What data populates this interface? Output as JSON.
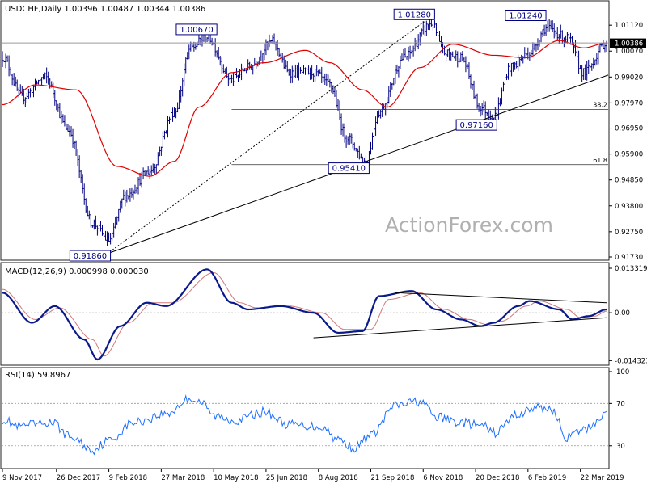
{
  "chart_data": {
    "type": "line",
    "symbol": "USDCHF",
    "timeframe": "Daily",
    "ohlc": "1.00396 1.00487 1.00344 1.00386",
    "watermark": "ActionForex.com",
    "x_labels": [
      "9 Nov 2017",
      "26 Dec 2017",
      "9 Feb 2018",
      "27 Mar 2018",
      "10 May 2018",
      "25 Jun 2018",
      "8 Aug 2018",
      "21 Sep 2018",
      "6 Nov 2018",
      "20 Dec 2018",
      "6 Feb 2019",
      "22 Mar 2019"
    ],
    "x_label_index": [
      0,
      33,
      65,
      97,
      129,
      161,
      193,
      225,
      257,
      289,
      321,
      353
    ],
    "n_bars": 370,
    "price": {
      "ylim": [
        0.9173,
        1.0142
      ],
      "ticks": [
        "1.01120",
        "1.00070",
        "0.99020",
        "0.97970",
        "0.96950",
        "0.95900",
        "0.94850",
        "0.93800",
        "0.92750",
        "0.91730"
      ],
      "last": "1.00386",
      "close_anchors": [
        [
          0,
          0.9983
        ],
        [
          12,
          0.982
        ],
        [
          26,
          0.9902
        ],
        [
          40,
          0.969
        ],
        [
          55,
          0.931
        ],
        [
          65,
          0.924
        ],
        [
          75,
          0.942
        ],
        [
          90,
          0.952
        ],
        [
          105,
          0.976
        ],
        [
          115,
          1.002
        ],
        [
          125,
          1.0067
        ],
        [
          140,
          0.989
        ],
        [
          150,
          0.994
        ],
        [
          165,
          1.0045
        ],
        [
          175,
          0.992
        ],
        [
          190,
          0.992
        ],
        [
          200,
          0.987
        ],
        [
          210,
          0.966
        ],
        [
          222,
          0.956
        ],
        [
          230,
          0.976
        ],
        [
          245,
          0.998
        ],
        [
          262,
          1.0118
        ],
        [
          270,
          1.0
        ],
        [
          280,
          0.998
        ],
        [
          292,
          0.978
        ],
        [
          300,
          0.974
        ],
        [
          310,
          0.994
        ],
        [
          322,
          1.0
        ],
        [
          332,
          1.01
        ],
        [
          345,
          1.006
        ],
        [
          355,
          0.992
        ],
        [
          369,
          1.0039
        ]
      ],
      "ma_anchors": [
        [
          0,
          0.979
        ],
        [
          20,
          0.987
        ],
        [
          45,
          0.985
        ],
        [
          70,
          0.954
        ],
        [
          90,
          0.95
        ],
        [
          105,
          0.956
        ],
        [
          120,
          0.978
        ],
        [
          140,
          0.992
        ],
        [
          160,
          0.996
        ],
        [
          185,
          1.001
        ],
        [
          200,
          0.996
        ],
        [
          220,
          0.985
        ],
        [
          235,
          0.978
        ],
        [
          255,
          0.994
        ],
        [
          275,
          1.0035
        ],
        [
          300,
          0.999
        ],
        [
          320,
          0.998
        ],
        [
          340,
          1.005
        ],
        [
          355,
          1.002
        ],
        [
          369,
          1.004
        ]
      ],
      "hline": 1.004,
      "fib_levels": [
        {
          "label": "38.2",
          "value": 0.977
        },
        {
          "label": "61.8",
          "value": 0.9547
        }
      ],
      "annotations": [
        {
          "text": "0.91860",
          "i": 64,
          "value": 0.9186
        },
        {
          "text": "1.00670",
          "i": 129,
          "value": 1.0067
        },
        {
          "text": "0.95410",
          "i": 222,
          "value": 0.9541
        },
        {
          "text": "1.01280",
          "i": 262,
          "value": 1.0128
        },
        {
          "text": "0.97160",
          "i": 300,
          "value": 0.9716
        },
        {
          "text": "1.01240",
          "i": 330,
          "value": 1.0124
        }
      ],
      "lines": [
        {
          "style": "solid",
          "from": [
            64,
            0.9186
          ],
          "to": [
            370,
            0.991
          ]
        },
        {
          "style": "dashed",
          "from": [
            64,
            0.9186
          ],
          "to": [
            258,
            1.0128
          ]
        }
      ]
    },
    "macd": {
      "label": "MACD(12,26,9) 0.000998 0.000030",
      "ylim": [
        -0.0152,
        0.0138
      ],
      "ticks": [
        "0.013319",
        "0.00",
        "-0.014323"
      ],
      "anchors": [
        [
          0,
          0.006
        ],
        [
          18,
          -0.003
        ],
        [
          32,
          0.002
        ],
        [
          50,
          -0.008
        ],
        [
          58,
          -0.014
        ],
        [
          72,
          -0.004
        ],
        [
          88,
          0.003
        ],
        [
          100,
          0.002
        ],
        [
          125,
          0.013
        ],
        [
          140,
          0.003
        ],
        [
          150,
          0.001
        ],
        [
          170,
          0.002
        ],
        [
          190,
          0.0
        ],
        [
          205,
          -0.006
        ],
        [
          220,
          -0.0055
        ],
        [
          230,
          0.005
        ],
        [
          250,
          0.0065
        ],
        [
          265,
          0.001
        ],
        [
          280,
          -0.002
        ],
        [
          292,
          -0.004
        ],
        [
          300,
          -0.003
        ],
        [
          315,
          0.002
        ],
        [
          322,
          0.0035
        ],
        [
          340,
          0.001
        ],
        [
          348,
          -0.002
        ],
        [
          358,
          -0.001
        ],
        [
          369,
          0.001
        ]
      ],
      "signal_anchors": [
        [
          0,
          0.007
        ],
        [
          20,
          -0.002
        ],
        [
          35,
          0.0015
        ],
        [
          55,
          -0.008
        ],
        [
          62,
          -0.013
        ],
        [
          77,
          -0.003
        ],
        [
          92,
          0.003
        ],
        [
          104,
          0.003
        ],
        [
          129,
          0.012
        ],
        [
          145,
          0.003
        ],
        [
          155,
          0.0015
        ],
        [
          175,
          0.002
        ],
        [
          195,
          0.0
        ],
        [
          209,
          -0.005
        ],
        [
          225,
          -0.005
        ],
        [
          236,
          0.004
        ],
        [
          255,
          0.006
        ],
        [
          270,
          0.001
        ],
        [
          285,
          -0.002
        ],
        [
          296,
          -0.0035
        ],
        [
          305,
          -0.0025
        ],
        [
          320,
          0.002
        ],
        [
          328,
          0.0035
        ],
        [
          345,
          0.001
        ],
        [
          353,
          -0.0015
        ],
        [
          362,
          -0.001
        ],
        [
          369,
          0.0005
        ]
      ],
      "lines": [
        {
          "from": [
            240,
            0.006
          ],
          "to": [
            369,
            0.003
          ]
        },
        {
          "from": [
            190,
            -0.0075
          ],
          "to": [
            369,
            -0.0015
          ]
        }
      ]
    },
    "rsi": {
      "label": "RSI(14) 59.8967",
      "ylim": [
        10,
        100
      ],
      "ticks": [
        "100",
        "70",
        "30"
      ],
      "levels": [
        70,
        30
      ],
      "anchors": [
        [
          0,
          55
        ],
        [
          10,
          48
        ],
        [
          20,
          50
        ],
        [
          30,
          52
        ],
        [
          42,
          38
        ],
        [
          55,
          26
        ],
        [
          65,
          35
        ],
        [
          80,
          52
        ],
        [
          100,
          60
        ],
        [
          115,
          75
        ],
        [
          120,
          72
        ],
        [
          130,
          58
        ],
        [
          142,
          54
        ],
        [
          160,
          62
        ],
        [
          175,
          50
        ],
        [
          195,
          48
        ],
        [
          205,
          36
        ],
        [
          215,
          28
        ],
        [
          225,
          40
        ],
        [
          240,
          68
        ],
        [
          255,
          72
        ],
        [
          265,
          57
        ],
        [
          280,
          52
        ],
        [
          295,
          48
        ],
        [
          300,
          42
        ],
        [
          315,
          60
        ],
        [
          325,
          66
        ],
        [
          335,
          65
        ],
        [
          345,
          38
        ],
        [
          355,
          45
        ],
        [
          369,
          60
        ]
      ]
    }
  }
}
